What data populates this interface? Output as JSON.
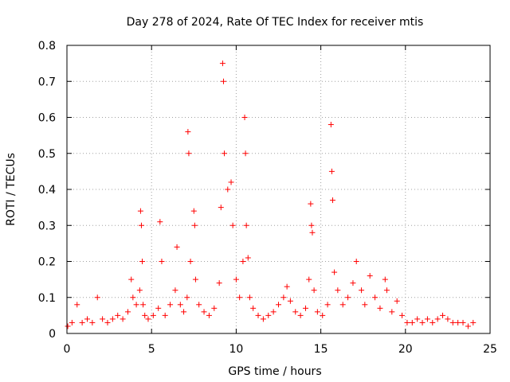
{
  "chart_data": {
    "type": "scatter",
    "title": "Day 278 of 2024, Rate Of TEC Index for receiver mtis",
    "xlabel": "GPS time / hours",
    "ylabel": "ROTI / TECUs",
    "xlim": [
      0,
      25
    ],
    "ylim": [
      0,
      0.8
    ],
    "xticks": [
      0,
      5,
      10,
      15,
      20,
      25
    ],
    "yticks": [
      0,
      0.1,
      0.2,
      0.3,
      0.4,
      0.5,
      0.6,
      0.7,
      0.8
    ],
    "xtick_labels": [
      "0",
      "5",
      "10",
      "15",
      "20",
      "25"
    ],
    "ytick_labels": [
      "0",
      "0.1",
      "0.2",
      "0.3",
      "0.4",
      "0.5",
      "0.6",
      "0.7",
      "0.8"
    ],
    "grid": true,
    "marker": "+",
    "series": [
      {
        "name": "ROTI",
        "color": "#ff0000",
        "x": [
          0.05,
          0.3,
          0.6,
          0.9,
          1.2,
          1.5,
          1.8,
          2.1,
          2.4,
          2.7,
          3.0,
          3.3,
          3.6,
          3.8,
          3.9,
          4.1,
          4.3,
          4.35,
          4.4,
          4.45,
          4.5,
          4.6,
          4.8,
          5.1,
          5.4,
          5.5,
          5.6,
          5.8,
          6.1,
          6.4,
          6.5,
          6.7,
          6.9,
          7.1,
          7.15,
          7.2,
          7.3,
          7.5,
          7.55,
          7.6,
          7.8,
          8.1,
          8.4,
          8.7,
          9.0,
          9.1,
          9.2,
          9.25,
          9.3,
          9.5,
          9.7,
          9.8,
          10.0,
          10.2,
          10.4,
          10.5,
          10.55,
          10.6,
          10.7,
          10.8,
          11.0,
          11.3,
          11.6,
          11.9,
          12.2,
          12.5,
          12.8,
          13.0,
          13.2,
          13.5,
          13.8,
          14.1,
          14.3,
          14.4,
          14.45,
          14.5,
          14.6,
          14.8,
          15.1,
          15.4,
          15.6,
          15.65,
          15.7,
          15.8,
          16.0,
          16.3,
          16.6,
          16.9,
          17.1,
          17.4,
          17.6,
          17.9,
          18.2,
          18.5,
          18.8,
          18.9,
          19.2,
          19.5,
          19.8,
          20.1,
          20.4,
          20.7,
          21.0,
          21.3,
          21.6,
          21.9,
          22.2,
          22.5,
          22.8,
          23.1,
          23.4,
          23.7,
          24.0
        ],
        "y": [
          0.02,
          0.03,
          0.08,
          0.03,
          0.04,
          0.03,
          0.1,
          0.04,
          0.03,
          0.04,
          0.05,
          0.04,
          0.06,
          0.15,
          0.1,
          0.08,
          0.12,
          0.34,
          0.3,
          0.2,
          0.08,
          0.05,
          0.04,
          0.05,
          0.07,
          0.31,
          0.2,
          0.05,
          0.08,
          0.12,
          0.24,
          0.08,
          0.06,
          0.1,
          0.56,
          0.5,
          0.2,
          0.34,
          0.3,
          0.15,
          0.08,
          0.06,
          0.05,
          0.07,
          0.14,
          0.35,
          0.75,
          0.7,
          0.5,
          0.4,
          0.42,
          0.3,
          0.15,
          0.1,
          0.2,
          0.6,
          0.5,
          0.3,
          0.21,
          0.1,
          0.07,
          0.05,
          0.04,
          0.05,
          0.06,
          0.08,
          0.1,
          0.13,
          0.09,
          0.06,
          0.05,
          0.07,
          0.15,
          0.36,
          0.3,
          0.28,
          0.12,
          0.06,
          0.05,
          0.08,
          0.58,
          0.45,
          0.37,
          0.17,
          0.12,
          0.08,
          0.1,
          0.14,
          0.2,
          0.12,
          0.08,
          0.16,
          0.1,
          0.07,
          0.15,
          0.12,
          0.06,
          0.09,
          0.05,
          0.03,
          0.03,
          0.04,
          0.03,
          0.04,
          0.03,
          0.04,
          0.05,
          0.04,
          0.03,
          0.03,
          0.03,
          0.02,
          0.03
        ]
      }
    ]
  }
}
